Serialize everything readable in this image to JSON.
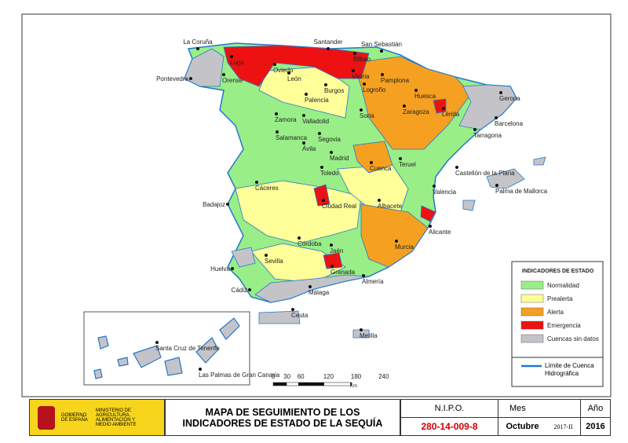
{
  "map": {
    "cities": [
      "La Coruña",
      "Santander",
      "Bilbao",
      "San Sebastián",
      "Oviedo",
      "Lugo",
      "Pontevedra",
      "Orense",
      "León",
      "Vitoria",
      "Pamplona",
      "Burgos",
      "Logroño",
      "Huesca",
      "Gerona",
      "Palencia",
      "Zaragoza",
      "Lérida",
      "Zamora",
      "Valladolid",
      "Soria",
      "Barcelona",
      "Tarragona",
      "Salamanca",
      "Segovia",
      "Ávila",
      "Madrid",
      "Cuenca",
      "Teruel",
      "Castellón de la Plana",
      "Toledo",
      "Palma de Mallorca",
      "Cáceres",
      "Valencia",
      "Badajoz",
      "Ciudad Real",
      "Albacete",
      "Alicante",
      "Córdoba",
      "Jaén",
      "Murcia",
      "Sevilla",
      "Granada",
      "Huelva",
      "Almería",
      "Cádiz",
      "Málaga",
      "Ceuta",
      "Melilla",
      "Santa Cruz de Tenerife",
      "Las Palmas de Gran Canaria"
    ],
    "legend": {
      "title": "INDICADORES DE ESTADO",
      "items": [
        {
          "label": "Normalidad",
          "color": "#99ee88"
        },
        {
          "label": "Prealerta",
          "color": "#ffff99"
        },
        {
          "label": "Alerta",
          "color": "#f5a020"
        },
        {
          "label": "Emergencia",
          "color": "#ee1111"
        },
        {
          "label": "Cuencas sin datos",
          "color": "#c4c4c8"
        }
      ],
      "basin_line": {
        "label": "Límite de Cuenca Hidrográfica",
        "color": "#2277cc"
      }
    },
    "scale": {
      "ticks": [
        "0",
        "30",
        "60",
        "120",
        "180",
        "240"
      ],
      "unit": "Km"
    }
  },
  "footer": {
    "government": "GOBIERNO DE ESPAÑA",
    "ministry": "MINISTERIO DE AGRICULTURA, ALIMENTACIÓN Y MEDIO AMBIENTE",
    "title": "MAPA DE SEGUIMIENTO DE LOS INDICADORES DE ESTADO DE LA SEQUÍA",
    "nipo_label": "N.I.P.O.",
    "nipo": "280-14-009-8",
    "month_label": "Mes",
    "month": "Octubre",
    "edition": "2017-II",
    "year_label": "Año",
    "year": "2016"
  }
}
